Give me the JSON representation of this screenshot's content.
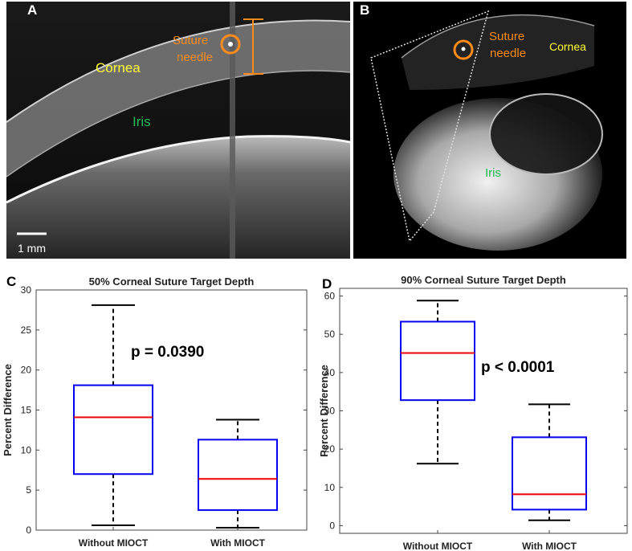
{
  "panel_a": {
    "letter": "A",
    "labels": {
      "cornea": "Cornea",
      "iris": "Iris",
      "suture_line1": "Suture",
      "suture_line2": "needle"
    },
    "scale_bar": "1 mm"
  },
  "panel_b": {
    "letter": "B",
    "labels": {
      "cornea": "Cornea",
      "iris": "Iris",
      "suture_line1": "Suture",
      "suture_line2": "needle"
    }
  },
  "colors": {
    "cornea_label": "#ffff33",
    "iris_label": "#22bb55",
    "suture_label": "#ff8c1a",
    "box": "#0000ee",
    "median": "#ee0000",
    "whisker": "#000000"
  },
  "chart_data": [
    {
      "letter": "C",
      "type": "box",
      "title": "50% Corneal Suture Target Depth",
      "ylabel": "Percent Difference",
      "xlabel": "",
      "categories": [
        "Without MIOCT",
        "With MIOCT"
      ],
      "ylim": [
        0,
        30
      ],
      "yticks": [
        0,
        5,
        10,
        15,
        20,
        25,
        30
      ],
      "boxes": [
        {
          "category": "Without MIOCT",
          "min": 0.6,
          "q1": 7.0,
          "median": 14.1,
          "q3": 18.1,
          "max": 28.1
        },
        {
          "category": "With MIOCT",
          "min": 0.3,
          "q1": 2.5,
          "median": 6.4,
          "q3": 11.3,
          "max": 13.8
        }
      ],
      "annotation": "p = 0.0390"
    },
    {
      "letter": "D",
      "type": "box",
      "title": "90% Corneal Suture Target Depth",
      "ylabel": "Percent Difference",
      "xlabel": "",
      "categories": [
        "Without MIOCT",
        "With MIOCT"
      ],
      "ylim": [
        -2,
        62
      ],
      "yticks": [
        0,
        10,
        20,
        30,
        40,
        50,
        60
      ],
      "boxes": [
        {
          "category": "Without MIOCT",
          "min": 16.2,
          "q1": 32.8,
          "median": 45.1,
          "q3": 53.3,
          "max": 58.8
        },
        {
          "category": "With MIOCT",
          "min": 1.4,
          "q1": 4.2,
          "median": 8.2,
          "q3": 23.1,
          "max": 31.7
        }
      ],
      "annotation": "p < 0.0001"
    }
  ]
}
